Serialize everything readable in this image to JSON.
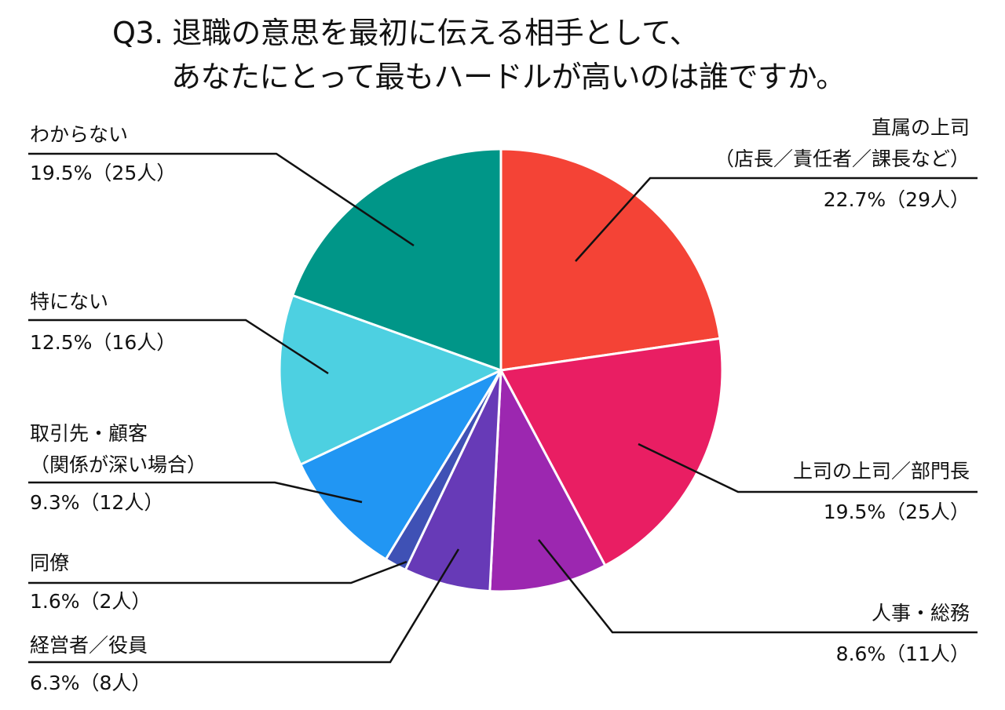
{
  "chart_data": {
    "type": "pie",
    "title_line1": "Q3. 退職の意思を最初に伝える相手として、",
    "title_line2": "あなたにとって最もハードルが高いのは誰ですか。",
    "slices": [
      {
        "label": [
          "直属の上司",
          "（店長／責任者／課長など）"
        ],
        "value_text": "22.7%（29人）",
        "percent": 22.7,
        "count": 29,
        "color": "#f44336"
      },
      {
        "label": [
          "上司の上司／部門長"
        ],
        "value_text": "19.5%（25人）",
        "percent": 19.5,
        "count": 25,
        "color": "#e91e63"
      },
      {
        "label": [
          "人事・総務"
        ],
        "value_text": "8.6%（11人）",
        "percent": 8.6,
        "count": 11,
        "color": "#9c27b0"
      },
      {
        "label": [
          "経営者／役員"
        ],
        "value_text": "6.3%（8人）",
        "percent": 6.3,
        "count": 8,
        "color": "#673ab7"
      },
      {
        "label": [
          "同僚"
        ],
        "value_text": "1.6%（2人）",
        "percent": 1.6,
        "count": 2,
        "color": "#3f51b5"
      },
      {
        "label": [
          "取引先・顧客",
          "（関係が深い場合）"
        ],
        "value_text": "9.3%（12人）",
        "percent": 9.3,
        "count": 12,
        "color": "#2196f3"
      },
      {
        "label": [
          "特にない"
        ],
        "value_text": "12.5%（16人）",
        "percent": 12.5,
        "count": 16,
        "color": "#4dd0e1"
      },
      {
        "label": [
          "わからない"
        ],
        "value_text": "19.5%（25人）",
        "percent": 19.5,
        "count": 25,
        "color": "#009688"
      }
    ]
  }
}
